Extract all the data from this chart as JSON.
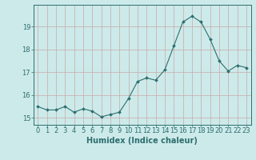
{
  "x": [
    0,
    1,
    2,
    3,
    4,
    5,
    6,
    7,
    8,
    9,
    10,
    11,
    12,
    13,
    14,
    15,
    16,
    17,
    18,
    19,
    20,
    21,
    22,
    23
  ],
  "y": [
    15.5,
    15.35,
    15.35,
    15.5,
    15.25,
    15.4,
    15.3,
    15.05,
    15.15,
    15.25,
    15.85,
    16.6,
    16.75,
    16.65,
    17.1,
    18.15,
    19.2,
    19.45,
    19.2,
    18.45,
    17.5,
    17.05,
    17.3,
    17.2
  ],
  "line_color": "#2d6e6e",
  "marker_color": "#2d6e6e",
  "bg_color": "#cdeaea",
  "grid_color": "#c8a8a8",
  "xlabel": "Humidex (Indice chaleur)",
  "ylim": [
    14.7,
    19.95
  ],
  "xlim": [
    -0.5,
    23.5
  ],
  "yticks": [
    15,
    16,
    17,
    18,
    19
  ],
  "xticks": [
    0,
    1,
    2,
    3,
    4,
    5,
    6,
    7,
    8,
    9,
    10,
    11,
    12,
    13,
    14,
    15,
    16,
    17,
    18,
    19,
    20,
    21,
    22,
    23
  ],
  "tick_fontsize": 6,
  "xlabel_fontsize": 7
}
